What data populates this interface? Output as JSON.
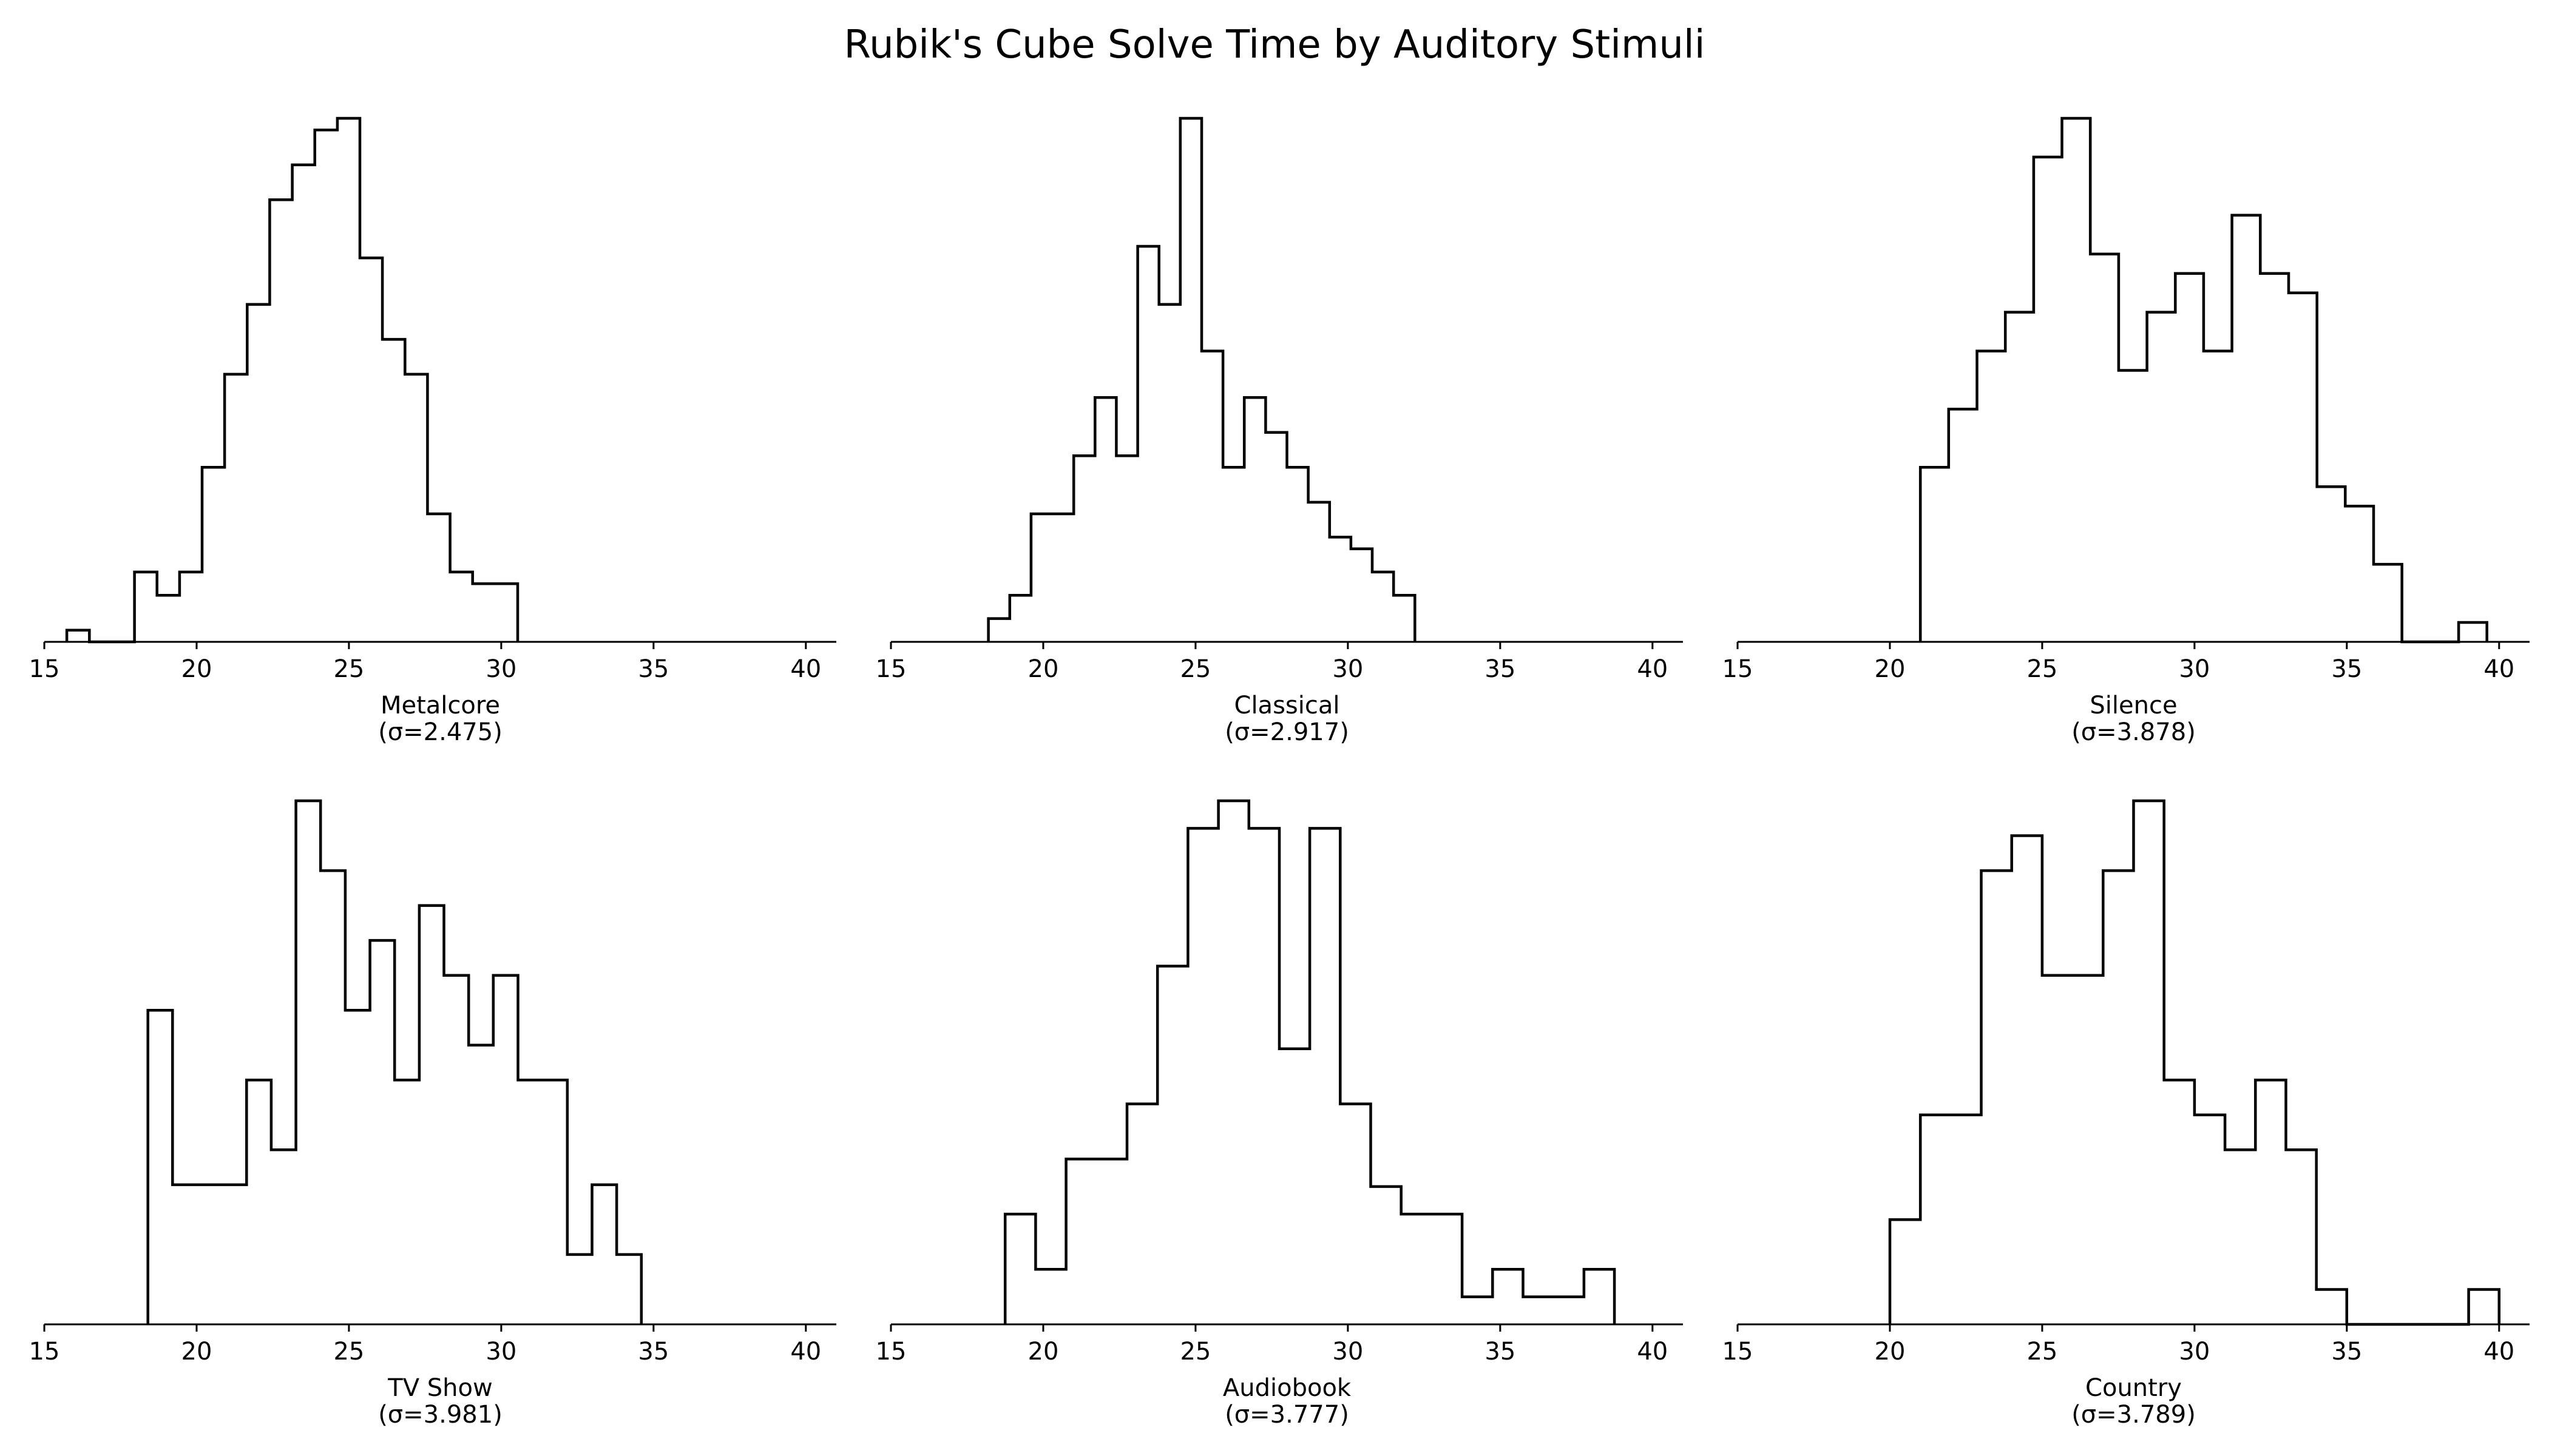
{
  "chart_data": {
    "type": "histogram",
    "title": "Rubik's Cube Solve Time by Auditory Stimuli",
    "x_range": [
      15,
      41
    ],
    "x_ticks": [
      15,
      20,
      25,
      30,
      35,
      40
    ],
    "y_axis_shown": false,
    "grid": false,
    "histtype": "step",
    "line_color": "#000000",
    "layout": "2 rows x 3 columns",
    "panels": [
      {
        "label": "Metalcore",
        "sigma_label": "(σ=2.475)",
        "edges": [
          15.74,
          16.48,
          17.22,
          17.96,
          18.7,
          19.44,
          20.18,
          20.92,
          21.66,
          22.4,
          23.14,
          23.88,
          24.62,
          25.36,
          26.1,
          26.84,
          27.58,
          28.32,
          29.06,
          29.8,
          30.54
        ],
        "counts": [
          0.5,
          0,
          0,
          3,
          2,
          3,
          7.5,
          11.5,
          14.5,
          19,
          20.5,
          22,
          22.5,
          16.5,
          13,
          11.5,
          5.5,
          3,
          2.5,
          2.5
        ]
      },
      {
        "label": "Classical",
        "sigma_label": "(σ=2.917)",
        "edges": [
          18.2,
          18.9,
          19.6,
          20.3,
          21.0,
          21.7,
          22.4,
          23.1,
          23.8,
          24.5,
          25.2,
          25.9,
          26.6,
          27.3,
          28.0,
          28.7,
          29.4,
          30.1,
          30.8,
          31.5,
          32.2
        ],
        "counts": [
          1,
          2,
          5.5,
          5.5,
          8,
          10.5,
          8,
          17,
          14.5,
          22.5,
          12.5,
          7.5,
          10.5,
          9,
          7.5,
          6,
          4.5,
          4,
          3,
          2
        ]
      },
      {
        "label": "Silence",
        "sigma_label": "(σ=3.878)",
        "edges": [
          21.0,
          21.93,
          22.86,
          23.79,
          24.72,
          25.65,
          26.58,
          27.51,
          28.44,
          29.37,
          30.3,
          31.23,
          32.16,
          33.09,
          34.02,
          34.95,
          35.88,
          36.81,
          37.74,
          38.67,
          39.6
        ],
        "counts": [
          4.5,
          6,
          7.5,
          8.5,
          12.5,
          13.5,
          10,
          7,
          8.5,
          9.5,
          7.5,
          11,
          9.5,
          9,
          4,
          3.5,
          2,
          0,
          0,
          0.5
        ]
      },
      {
        "label": "TV Show",
        "sigma_label": "(σ=3.981)",
        "edges": [
          18.4,
          19.21,
          20.02,
          20.83,
          21.64,
          22.45,
          23.26,
          24.07,
          24.88,
          25.69,
          26.5,
          27.31,
          28.12,
          28.93,
          29.74,
          30.55,
          31.36,
          32.17,
          32.98,
          33.79,
          34.6
        ],
        "counts": [
          4.5,
          2,
          2,
          2,
          3.5,
          2.5,
          7.5,
          6.5,
          4.5,
          5.5,
          3.5,
          6,
          5,
          4,
          5,
          3.5,
          3.5,
          1,
          2,
          1
        ]
      },
      {
        "label": "Audiobook",
        "sigma_label": "(σ=3.777)",
        "edges": [
          18.75,
          19.75,
          20.75,
          21.75,
          22.75,
          23.75,
          24.75,
          25.75,
          26.75,
          27.75,
          28.75,
          29.75,
          30.75,
          31.75,
          32.75,
          33.75,
          34.75,
          35.75,
          36.75,
          37.75,
          38.75
        ],
        "counts": [
          2,
          1,
          3,
          3,
          4,
          6.5,
          9,
          9.5,
          9,
          5,
          9,
          4,
          2.5,
          2,
          2,
          0.5,
          1,
          0.5,
          0.5,
          1
        ]
      },
      {
        "label": "Country",
        "sigma_label": "(σ=3.789)",
        "edges": [
          20.0,
          21.0,
          22.0,
          23.0,
          24.0,
          25.0,
          26.0,
          27.0,
          28.0,
          29.0,
          30.0,
          31.0,
          32.0,
          33.0,
          34.0,
          35.0,
          36.0,
          37.0,
          38.0,
          39.0,
          40.0
        ],
        "counts": [
          1.5,
          3,
          3,
          6.5,
          7,
          5,
          5,
          6.5,
          7.5,
          3.5,
          3,
          2.5,
          3.5,
          2.5,
          0.5,
          0,
          0,
          0,
          0,
          0.5
        ]
      }
    ]
  }
}
